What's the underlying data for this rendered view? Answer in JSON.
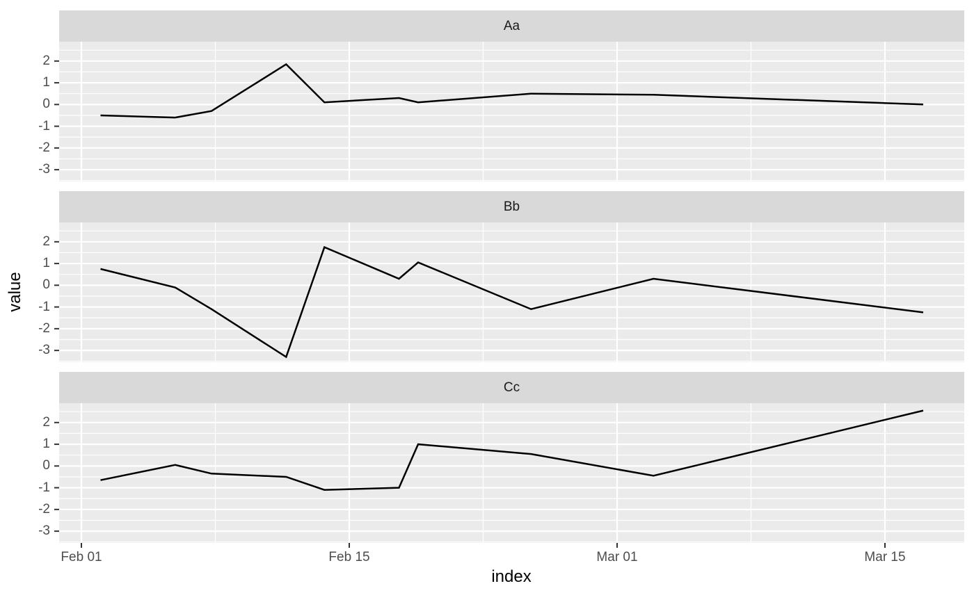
{
  "chart_data": {
    "type": "line",
    "title": "",
    "xlabel": "index",
    "ylabel": "value",
    "legend": "none",
    "grid": true,
    "facet_layout": "rows",
    "facets": [
      {
        "label": "Aa",
        "values": [
          -0.5,
          -0.6,
          -0.3,
          1.85,
          0.1,
          0.3,
          0.1,
          0.5,
          0.45,
          0.0
        ]
      },
      {
        "label": "Bb",
        "values": [
          0.75,
          -0.1,
          -1.1,
          -3.3,
          1.75,
          0.3,
          1.05,
          -1.1,
          0.3,
          -1.25
        ]
      },
      {
        "label": "Cc",
        "values": [
          -0.65,
          0.05,
          -0.35,
          -0.5,
          -1.1,
          -1.0,
          1.0,
          0.55,
          -0.45,
          2.55
        ]
      }
    ],
    "x": {
      "point_dates": [
        "Feb 02",
        "Feb 06",
        "Feb 08",
        "Feb 12",
        "Feb 14",
        "Feb 18",
        "Feb 19",
        "Feb 24",
        "Mar 03",
        "Mar 17"
      ],
      "point_day_offsets": [
        1,
        4.9,
        6.8,
        10.7,
        12.7,
        16.6,
        17.6,
        23.5,
        29.9,
        44
      ],
      "axis_tick_labels": [
        "Feb 01",
        "Feb 15",
        "Mar 01",
        "Mar 15"
      ],
      "axis_tick_days": [
        0,
        14,
        28,
        42
      ],
      "minor_tick_days": [
        7,
        21,
        35
      ]
    },
    "y": {
      "axis_tick_labels": [
        "2",
        "1",
        "0",
        "-1",
        "-2",
        "-3"
      ],
      "axis_tick_values": [
        2,
        1,
        0,
        -1,
        -2,
        -3
      ],
      "minor_tick_values": [
        2.5,
        1.5,
        0.5,
        -0.5,
        -1.5,
        -2.5,
        -3.5
      ],
      "range": [
        -3.54,
        2.89
      ]
    },
    "colors": {
      "background": "#FFFFFF",
      "panel_bg": "#EBEBEB",
      "strip_bg": "#D9D9D9",
      "gridline": "#FFFFFF",
      "series_line": "#000000",
      "axis_text": "#4D4D4D",
      "strip_text": "#1A1A1A",
      "tick_mark": "#333333",
      "axis_title": "#000000"
    }
  }
}
